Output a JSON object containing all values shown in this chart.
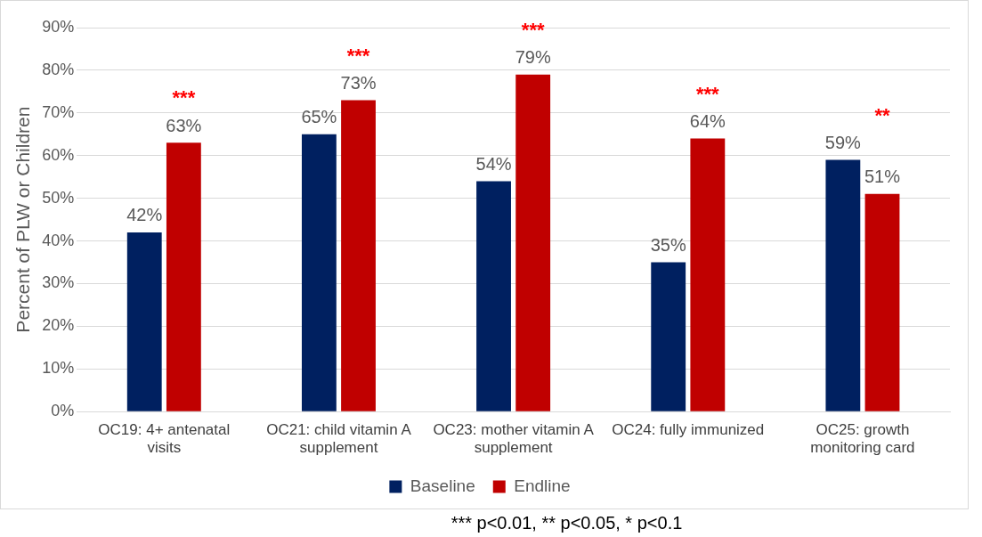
{
  "chart_data": {
    "type": "bar",
    "ylabel": "Percent of PLW or Children",
    "categories": [
      "OC19: 4+ antenatal visits",
      "OC21: child vitamin A supplement",
      "OC23: mother vitamin A supplement",
      "OC24: fully immunized",
      "OC25: growth monitoring card"
    ],
    "series": [
      {
        "name": "Baseline",
        "color": "#002060",
        "values": [
          42,
          65,
          54,
          35,
          59
        ],
        "value_labels": [
          "42%",
          "65%",
          "54%",
          "35%",
          "59%"
        ]
      },
      {
        "name": "Endline",
        "color": "#c00000",
        "values": [
          63,
          73,
          79,
          64,
          51
        ],
        "value_labels": [
          "63%",
          "73%",
          "79%",
          "64%",
          "51%"
        ]
      }
    ],
    "ylim": [
      0,
      90
    ],
    "yticks": [
      {
        "value": 0,
        "label": "0%"
      },
      {
        "value": 10,
        "label": "10%"
      },
      {
        "value": 20,
        "label": "20%"
      },
      {
        "value": 30,
        "label": "30%"
      },
      {
        "value": 40,
        "label": "40%"
      },
      {
        "value": 50,
        "label": "50%"
      },
      {
        "value": 60,
        "label": "60%"
      },
      {
        "value": 70,
        "label": "70%"
      },
      {
        "value": 80,
        "label": "80%"
      },
      {
        "value": 90,
        "label": "90%"
      }
    ],
    "grid": "y",
    "legend": "bottom",
    "annotations": [
      {
        "text": "***",
        "x": "OC19: 4+ antenatal visits",
        "y": 63
      },
      {
        "text": "***",
        "x": "OC21: child vitamin A supplement",
        "y": 73
      },
      {
        "text": "***",
        "x": "OC23: mother vitamin A supplement",
        "y": 79
      },
      {
        "text": "***",
        "x": "OC24: fully immunized",
        "y": 64
      },
      {
        "text": "**",
        "x": "OC25: growth monitoring card",
        "y": 59
      },
      "*** p<0.01, ** p<0.05, * p<0.1"
    ]
  }
}
